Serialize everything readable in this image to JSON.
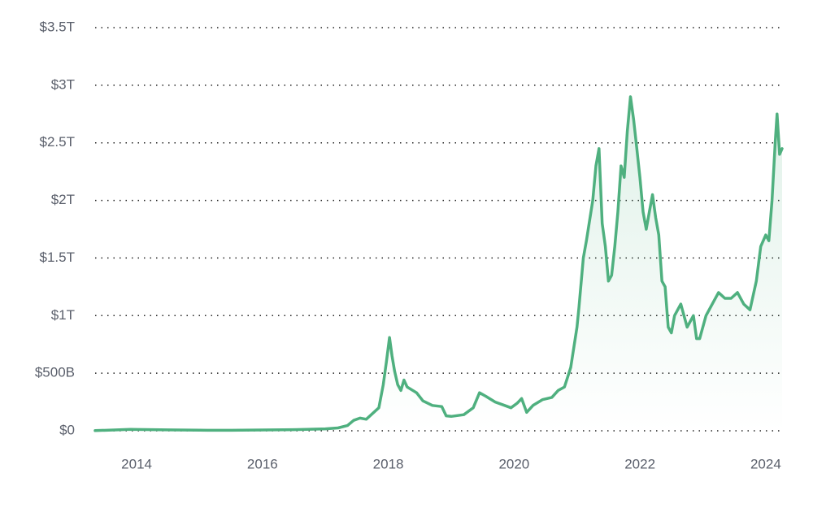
{
  "chart_data": {
    "type": "line",
    "x": [
      2013.34,
      2013.9,
      2014.0,
      2014.5,
      2015.0,
      2015.5,
      2016.0,
      2016.5,
      2017.0,
      2017.2,
      2017.35,
      2017.45,
      2017.55,
      2017.65,
      2017.75,
      2017.85,
      2017.92,
      2017.97,
      2018.02,
      2018.06,
      2018.1,
      2018.15,
      2018.2,
      2018.25,
      2018.3,
      2018.45,
      2018.55,
      2018.7,
      2018.85,
      2018.92,
      2019.0,
      2019.2,
      2019.35,
      2019.45,
      2019.55,
      2019.7,
      2019.85,
      2019.95,
      2020.05,
      2020.12,
      2020.2,
      2020.3,
      2020.45,
      2020.6,
      2020.7,
      2020.8,
      2020.9,
      2021.0,
      2021.03,
      2021.1,
      2021.15,
      2021.25,
      2021.3,
      2021.35,
      2021.4,
      2021.45,
      2021.5,
      2021.55,
      2021.6,
      2021.65,
      2021.7,
      2021.75,
      2021.8,
      2021.85,
      2021.9,
      2021.95,
      2022.0,
      2022.05,
      2022.1,
      2022.15,
      2022.2,
      2022.25,
      2022.3,
      2022.35,
      2022.4,
      2022.45,
      2022.5,
      2022.55,
      2022.65,
      2022.75,
      2022.85,
      2022.9,
      2022.95,
      2023.05,
      2023.15,
      2023.25,
      2023.35,
      2023.45,
      2023.55,
      2023.65,
      2023.75,
      2023.85,
      2023.92,
      2024.0,
      2024.05,
      2024.1,
      2024.15,
      2024.18,
      2024.22,
      2024.26
    ],
    "series": [
      {
        "color": "#4fb07f",
        "values": [
          1.5,
          12,
          11,
          8,
          5,
          4,
          7,
          10,
          17,
          25,
          45,
          90,
          110,
          100,
          150,
          200,
          400,
          600,
          810,
          650,
          520,
          400,
          350,
          440,
          380,
          330,
          260,
          220,
          210,
          130,
          125,
          140,
          200,
          330,
          300,
          250,
          220,
          200,
          240,
          280,
          160,
          220,
          270,
          290,
          350,
          380,
          550,
          900,
          1070,
          1500,
          1650,
          2000,
          2300,
          2450,
          1800,
          1600,
          1300,
          1350,
          1600,
          1900,
          2300,
          2200,
          2600,
          2900,
          2700,
          2450,
          2200,
          1900,
          1750,
          1900,
          2050,
          1850,
          1700,
          1300,
          1250,
          900,
          850,
          1000,
          1100,
          900,
          1000,
          800,
          800,
          1000,
          1100,
          1200,
          1150,
          1150,
          1200,
          1100,
          1050,
          1300,
          1600,
          1700,
          1650,
          2000,
          2500,
          2750,
          2400,
          2450
        ]
      }
    ],
    "xlim": [
      2013.34,
      2024.26
    ],
    "xticks": [
      2014,
      2016,
      2018,
      2020,
      2022,
      2024
    ],
    "ylim": [
      0,
      3500
    ],
    "yticks": [
      {
        "value": 0,
        "label": "$0"
      },
      {
        "value": 500,
        "label": "$500B"
      },
      {
        "value": 1000,
        "label": "$1T"
      },
      {
        "value": 1500,
        "label": "$1.5T"
      },
      {
        "value": 2000,
        "label": "$2T"
      },
      {
        "value": 2500,
        "label": "$2.5T"
      },
      {
        "value": 3000,
        "label": "$3T"
      },
      {
        "value": 3500,
        "label": "$3.5T"
      }
    ],
    "grid": true
  }
}
